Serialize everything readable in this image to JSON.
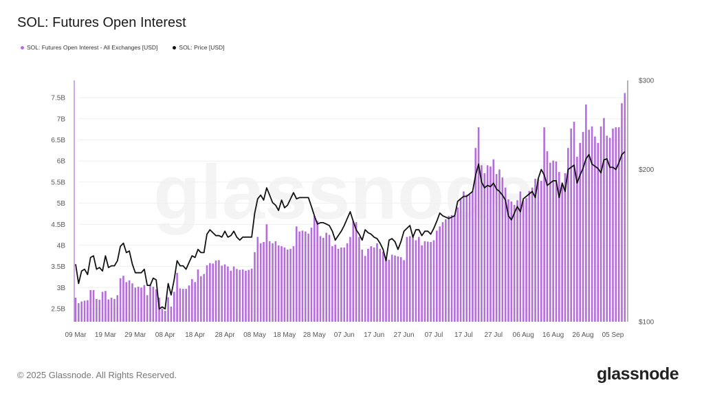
{
  "title": "SOL: Futures Open Interest",
  "legend": [
    {
      "label": "SOL: Futures Open Interest - All Exchanges [USD]",
      "color": "#b56cdc"
    },
    {
      "label": "SOL: Price [USD]",
      "color": "#111111"
    }
  ],
  "footer": "© 2025 Glassnode. All Rights Reserved.",
  "logo": "glassnode",
  "watermark": "glassnode",
  "chart_data": {
    "type": "bar+line",
    "title": "SOL: Futures Open Interest",
    "x_tick_labels": [
      "09 Mar",
      "19 Mar",
      "29 Mar",
      "08 Apr",
      "18 Apr",
      "28 Apr",
      "08 May",
      "18 May",
      "28 May",
      "07 Jun",
      "17 Jun",
      "27 Jun",
      "07 Jul",
      "17 Jul",
      "27 Jul",
      "06 Aug",
      "16 Aug",
      "26 Aug",
      "05 Sep"
    ],
    "x_tick_dates": [
      "2025-03-09",
      "2025-03-19",
      "2025-03-29",
      "2025-04-08",
      "2025-04-18",
      "2025-04-28",
      "2025-05-08",
      "2025-05-18",
      "2025-05-28",
      "2025-06-07",
      "2025-06-17",
      "2025-06-27",
      "2025-07-07",
      "2025-07-17",
      "2025-07-27",
      "2025-08-06",
      "2025-08-16",
      "2025-08-26",
      "2025-09-05"
    ],
    "x_range": [
      "2025-03-09",
      "2025-09-09"
    ],
    "left_axis": {
      "ticks": [
        "2.5B",
        "3B",
        "3.5B",
        "4B",
        "4.5B",
        "5B",
        "5.5B",
        "6B",
        "6.5B",
        "7B",
        "7.5B"
      ],
      "tick_values": [
        2.5,
        3,
        3.5,
        4,
        4.5,
        5,
        5.5,
        6,
        6.5,
        7,
        7.5
      ],
      "range": [
        2.19,
        7.91
      ],
      "unit": "B USD",
      "scale": "linear",
      "color": "#b56cdc"
    },
    "right_axis": {
      "ticks": [
        "$100",
        "$200",
        "$300"
      ],
      "tick_values": [
        100,
        200,
        300
      ],
      "range": [
        100,
        300
      ],
      "scale": "log"
    },
    "grid": true,
    "legend_position": "top-left",
    "series": [
      {
        "name": "SOL: Futures Open Interest - All Exchanges [USD]",
        "type": "bar",
        "axis": "left",
        "color": "#b56cdc",
        "values": [
          2.76,
          2.63,
          2.67,
          2.69,
          2.7,
          2.94,
          2.94,
          2.73,
          2.71,
          2.9,
          2.92,
          2.72,
          2.76,
          2.73,
          2.82,
          3.22,
          3.28,
          3.13,
          3.17,
          3.1,
          3.0,
          3.02,
          3.0,
          3.06,
          2.82,
          3.05,
          3.02,
          2.96,
          2.76,
          2.5,
          2.45,
          2.77,
          2.55,
          2.9,
          3.35,
          2.98,
          2.97,
          2.97,
          3.05,
          3.2,
          3.13,
          3.43,
          3.27,
          3.32,
          3.53,
          3.58,
          3.57,
          3.64,
          3.65,
          3.52,
          3.55,
          3.5,
          3.4,
          3.5,
          3.44,
          3.42,
          3.43,
          3.4,
          3.42,
          3.45,
          3.84,
          4.2,
          4.05,
          4.08,
          4.5,
          4.1,
          4.05,
          4.1,
          4.0,
          3.98,
          3.95,
          3.9,
          3.92,
          3.98,
          4.45,
          4.33,
          4.35,
          4.33,
          4.28,
          4.42,
          4.7,
          4.58,
          4.22,
          4.18,
          4.3,
          4.25,
          3.98,
          4.02,
          3.92,
          3.95,
          3.95,
          4.05,
          4.2,
          4.58,
          4.55,
          4.2,
          3.9,
          3.75,
          3.92,
          3.98,
          3.95,
          4.05,
          3.92,
          3.85,
          3.72,
          3.66,
          3.78,
          3.76,
          3.74,
          3.72,
          3.65,
          4.2,
          4.22,
          4.25,
          4.12,
          4.2,
          4.0,
          4.1,
          4.09,
          4.08,
          4.12,
          4.35,
          4.45,
          4.55,
          4.62,
          4.7,
          4.72,
          4.72,
          4.9,
          5.1,
          5.28,
          5.2,
          5.2,
          5.28,
          6.31,
          6.8,
          5.9,
          5.71,
          5.9,
          5.87,
          6.04,
          5.69,
          5.8,
          5.61,
          5.37,
          5.09,
          5.04,
          4.96,
          5.07,
          5.28,
          5.07,
          5.12,
          5.29,
          5.37,
          5.58,
          5.58,
          5.53,
          6.8,
          6.23,
          5.96,
          6.01,
          5.99,
          5.74,
          5.42,
          5.71,
          6.31,
          6.77,
          6.93,
          6.1,
          6.43,
          6.69,
          7.34,
          6.74,
          6.82,
          6.58,
          6.43,
          6.82,
          7.02,
          6.6,
          6.55,
          6.77,
          6.8,
          6.8,
          7.37,
          7.61
        ]
      },
      {
        "name": "SOL: Price [USD]",
        "type": "line",
        "axis": "right",
        "color": "#111111",
        "values": [
          130,
          119,
          126,
          127,
          124,
          134,
          135,
          127,
          128,
          126,
          135,
          128,
          129,
          129,
          132,
          141,
          143,
          137,
          138,
          130,
          125,
          125,
          125,
          127,
          118,
          118,
          122,
          121,
          106,
          107,
          106,
          119,
          113,
          121,
          132,
          129,
          129,
          127,
          131,
          135,
          134,
          139,
          137,
          137,
          149,
          152,
          150,
          148,
          148,
          147,
          151,
          147,
          148,
          151,
          147,
          145,
          147,
          147,
          147,
          147,
          164,
          175,
          178,
          174,
          184,
          178,
          172,
          170,
          166,
          174,
          168,
          170,
          175,
          180,
          175,
          176,
          176,
          176,
          176,
          169,
          162,
          156,
          157,
          157,
          156,
          155,
          151,
          145,
          148,
          151,
          155,
          160,
          165,
          158,
          152,
          149,
          145,
          152,
          150,
          149,
          147,
          146,
          143,
          139,
          132,
          145,
          146,
          144,
          139,
          144,
          151,
          153,
          155,
          147,
          152,
          152,
          148,
          151,
          151,
          149,
          153,
          158,
          164,
          162,
          161,
          160,
          161,
          162,
          173,
          175,
          177,
          177,
          179,
          181,
          195,
          205,
          189,
          184,
          186,
          185,
          188,
          183,
          181,
          178,
          174,
          162,
          159,
          164,
          169,
          165,
          175,
          177,
          179,
          181,
          176,
          192,
          200,
          195,
          186,
          188,
          190,
          190,
          176,
          188,
          181,
          200,
          202,
          204,
          188,
          195,
          201,
          210,
          214,
          205,
          203,
          201,
          197,
          209,
          210,
          202,
          202,
          200,
          206,
          214,
          217
        ]
      }
    ]
  }
}
